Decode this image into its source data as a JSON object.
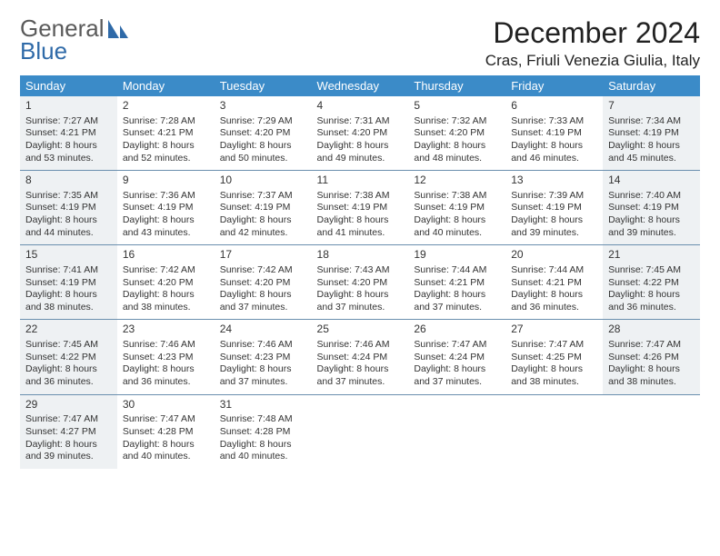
{
  "logo": {
    "line1": "General",
    "line2": "Blue"
  },
  "title": "December 2024",
  "location": "Cras, Friuli Venezia Giulia, Italy",
  "weekdays": [
    "Sunday",
    "Monday",
    "Tuesday",
    "Wednesday",
    "Thursday",
    "Friday",
    "Saturday"
  ],
  "header_bg": "#3b8bc8",
  "header_fg": "#ffffff",
  "shade_bg": "#eef1f3",
  "rule_color": "#6a8fae",
  "weeks": [
    [
      {
        "n": "1",
        "sr": "Sunrise: 7:27 AM",
        "ss": "Sunset: 4:21 PM",
        "d1": "Daylight: 8 hours",
        "d2": "and 53 minutes.",
        "sh": true
      },
      {
        "n": "2",
        "sr": "Sunrise: 7:28 AM",
        "ss": "Sunset: 4:21 PM",
        "d1": "Daylight: 8 hours",
        "d2": "and 52 minutes.",
        "sh": false
      },
      {
        "n": "3",
        "sr": "Sunrise: 7:29 AM",
        "ss": "Sunset: 4:20 PM",
        "d1": "Daylight: 8 hours",
        "d2": "and 50 minutes.",
        "sh": false
      },
      {
        "n": "4",
        "sr": "Sunrise: 7:31 AM",
        "ss": "Sunset: 4:20 PM",
        "d1": "Daylight: 8 hours",
        "d2": "and 49 minutes.",
        "sh": false
      },
      {
        "n": "5",
        "sr": "Sunrise: 7:32 AM",
        "ss": "Sunset: 4:20 PM",
        "d1": "Daylight: 8 hours",
        "d2": "and 48 minutes.",
        "sh": false
      },
      {
        "n": "6",
        "sr": "Sunrise: 7:33 AM",
        "ss": "Sunset: 4:19 PM",
        "d1": "Daylight: 8 hours",
        "d2": "and 46 minutes.",
        "sh": false
      },
      {
        "n": "7",
        "sr": "Sunrise: 7:34 AM",
        "ss": "Sunset: 4:19 PM",
        "d1": "Daylight: 8 hours",
        "d2": "and 45 minutes.",
        "sh": true
      }
    ],
    [
      {
        "n": "8",
        "sr": "Sunrise: 7:35 AM",
        "ss": "Sunset: 4:19 PM",
        "d1": "Daylight: 8 hours",
        "d2": "and 44 minutes.",
        "sh": true
      },
      {
        "n": "9",
        "sr": "Sunrise: 7:36 AM",
        "ss": "Sunset: 4:19 PM",
        "d1": "Daylight: 8 hours",
        "d2": "and 43 minutes.",
        "sh": false
      },
      {
        "n": "10",
        "sr": "Sunrise: 7:37 AM",
        "ss": "Sunset: 4:19 PM",
        "d1": "Daylight: 8 hours",
        "d2": "and 42 minutes.",
        "sh": false
      },
      {
        "n": "11",
        "sr": "Sunrise: 7:38 AM",
        "ss": "Sunset: 4:19 PM",
        "d1": "Daylight: 8 hours",
        "d2": "and 41 minutes.",
        "sh": false
      },
      {
        "n": "12",
        "sr": "Sunrise: 7:38 AM",
        "ss": "Sunset: 4:19 PM",
        "d1": "Daylight: 8 hours",
        "d2": "and 40 minutes.",
        "sh": false
      },
      {
        "n": "13",
        "sr": "Sunrise: 7:39 AM",
        "ss": "Sunset: 4:19 PM",
        "d1": "Daylight: 8 hours",
        "d2": "and 39 minutes.",
        "sh": false
      },
      {
        "n": "14",
        "sr": "Sunrise: 7:40 AM",
        "ss": "Sunset: 4:19 PM",
        "d1": "Daylight: 8 hours",
        "d2": "and 39 minutes.",
        "sh": true
      }
    ],
    [
      {
        "n": "15",
        "sr": "Sunrise: 7:41 AM",
        "ss": "Sunset: 4:19 PM",
        "d1": "Daylight: 8 hours",
        "d2": "and 38 minutes.",
        "sh": true
      },
      {
        "n": "16",
        "sr": "Sunrise: 7:42 AM",
        "ss": "Sunset: 4:20 PM",
        "d1": "Daylight: 8 hours",
        "d2": "and 38 minutes.",
        "sh": false
      },
      {
        "n": "17",
        "sr": "Sunrise: 7:42 AM",
        "ss": "Sunset: 4:20 PM",
        "d1": "Daylight: 8 hours",
        "d2": "and 37 minutes.",
        "sh": false
      },
      {
        "n": "18",
        "sr": "Sunrise: 7:43 AM",
        "ss": "Sunset: 4:20 PM",
        "d1": "Daylight: 8 hours",
        "d2": "and 37 minutes.",
        "sh": false
      },
      {
        "n": "19",
        "sr": "Sunrise: 7:44 AM",
        "ss": "Sunset: 4:21 PM",
        "d1": "Daylight: 8 hours",
        "d2": "and 37 minutes.",
        "sh": false
      },
      {
        "n": "20",
        "sr": "Sunrise: 7:44 AM",
        "ss": "Sunset: 4:21 PM",
        "d1": "Daylight: 8 hours",
        "d2": "and 36 minutes.",
        "sh": false
      },
      {
        "n": "21",
        "sr": "Sunrise: 7:45 AM",
        "ss": "Sunset: 4:22 PM",
        "d1": "Daylight: 8 hours",
        "d2": "and 36 minutes.",
        "sh": true
      }
    ],
    [
      {
        "n": "22",
        "sr": "Sunrise: 7:45 AM",
        "ss": "Sunset: 4:22 PM",
        "d1": "Daylight: 8 hours",
        "d2": "and 36 minutes.",
        "sh": true
      },
      {
        "n": "23",
        "sr": "Sunrise: 7:46 AM",
        "ss": "Sunset: 4:23 PM",
        "d1": "Daylight: 8 hours",
        "d2": "and 36 minutes.",
        "sh": false
      },
      {
        "n": "24",
        "sr": "Sunrise: 7:46 AM",
        "ss": "Sunset: 4:23 PM",
        "d1": "Daylight: 8 hours",
        "d2": "and 37 minutes.",
        "sh": false
      },
      {
        "n": "25",
        "sr": "Sunrise: 7:46 AM",
        "ss": "Sunset: 4:24 PM",
        "d1": "Daylight: 8 hours",
        "d2": "and 37 minutes.",
        "sh": false
      },
      {
        "n": "26",
        "sr": "Sunrise: 7:47 AM",
        "ss": "Sunset: 4:24 PM",
        "d1": "Daylight: 8 hours",
        "d2": "and 37 minutes.",
        "sh": false
      },
      {
        "n": "27",
        "sr": "Sunrise: 7:47 AM",
        "ss": "Sunset: 4:25 PM",
        "d1": "Daylight: 8 hours",
        "d2": "and 38 minutes.",
        "sh": false
      },
      {
        "n": "28",
        "sr": "Sunrise: 7:47 AM",
        "ss": "Sunset: 4:26 PM",
        "d1": "Daylight: 8 hours",
        "d2": "and 38 minutes.",
        "sh": true
      }
    ],
    [
      {
        "n": "29",
        "sr": "Sunrise: 7:47 AM",
        "ss": "Sunset: 4:27 PM",
        "d1": "Daylight: 8 hours",
        "d2": "and 39 minutes.",
        "sh": true
      },
      {
        "n": "30",
        "sr": "Sunrise: 7:47 AM",
        "ss": "Sunset: 4:28 PM",
        "d1": "Daylight: 8 hours",
        "d2": "and 40 minutes.",
        "sh": false
      },
      {
        "n": "31",
        "sr": "Sunrise: 7:48 AM",
        "ss": "Sunset: 4:28 PM",
        "d1": "Daylight: 8 hours",
        "d2": "and 40 minutes.",
        "sh": false
      },
      null,
      null,
      null,
      null
    ]
  ]
}
